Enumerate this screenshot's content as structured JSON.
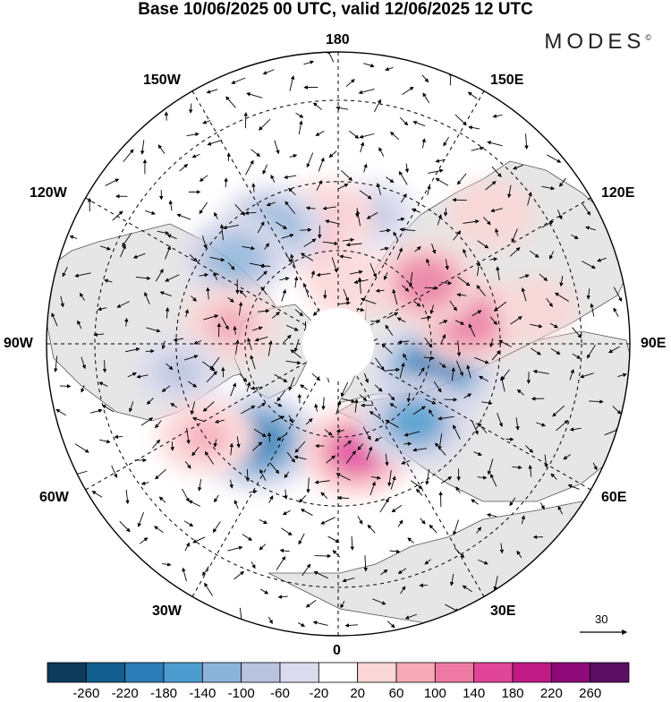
{
  "title": "Base 10/06/2025 00 UTC, valid 12/06/2025 12 UTC",
  "brand": {
    "name": "MODES",
    "mark": "©"
  },
  "longitude_labels": {
    "top": "180",
    "bottom": "0",
    "left": "90W",
    "right": "90E",
    "upper_left_1": "150W",
    "upper_left_2": "120W",
    "upper_right_1": "150E",
    "upper_right_2": "120E",
    "lower_left_1": "60W",
    "lower_left_2": "30W",
    "lower_right_1": "60E",
    "lower_right_2": "30E"
  },
  "vector_reference": {
    "value": "30"
  },
  "colorbar": {
    "ticks": [
      "-260",
      "-220",
      "-180",
      "-140",
      "-100",
      "-60",
      "-20",
      "20",
      "60",
      "100",
      "140",
      "180",
      "220",
      "260"
    ],
    "colors": [
      "#0e3a5c",
      "#135f8f",
      "#2a7db8",
      "#4c9cd0",
      "#8cb4d9",
      "#b9c3df",
      "#dcdbee",
      "#ffffff",
      "#fbd6d6",
      "#f6a9b7",
      "#ee7aa3",
      "#e04597",
      "#c01a86",
      "#8d0a78",
      "#5b0f63"
    ]
  },
  "map": {
    "projection": "north polar stereographic",
    "anomalies": [
      {
        "lon": 75,
        "lat": 58,
        "value": -190
      },
      {
        "lon": 100,
        "lat": 48,
        "value": 130
      },
      {
        "lon": 125,
        "lat": 56,
        "value": 120
      },
      {
        "lon": 165,
        "lat": 48,
        "value": -60
      },
      {
        "lon": 130,
        "lat": 30,
        "value": 60
      },
      {
        "lon": -175,
        "lat": 50,
        "value": 80
      },
      {
        "lon": -160,
        "lat": 52,
        "value": 110
      },
      {
        "lon": -150,
        "lat": 48,
        "value": -130
      },
      {
        "lon": -130,
        "lat": 48,
        "value": -120
      },
      {
        "lon": -100,
        "lat": 55,
        "value": 90
      },
      {
        "lon": -80,
        "lat": 40,
        "value": -60
      },
      {
        "lon": -40,
        "lat": 50,
        "value": -190
      },
      {
        "lon": -55,
        "lat": 40,
        "value": 90
      },
      {
        "lon": 10,
        "lat": 55,
        "value": 150
      },
      {
        "lon": 45,
        "lat": 55,
        "value": -140
      },
      {
        "lon": 100,
        "lat": 30,
        "value": 40
      },
      {
        "lon": 170,
        "lat": 70,
        "value": 60
      }
    ]
  }
}
